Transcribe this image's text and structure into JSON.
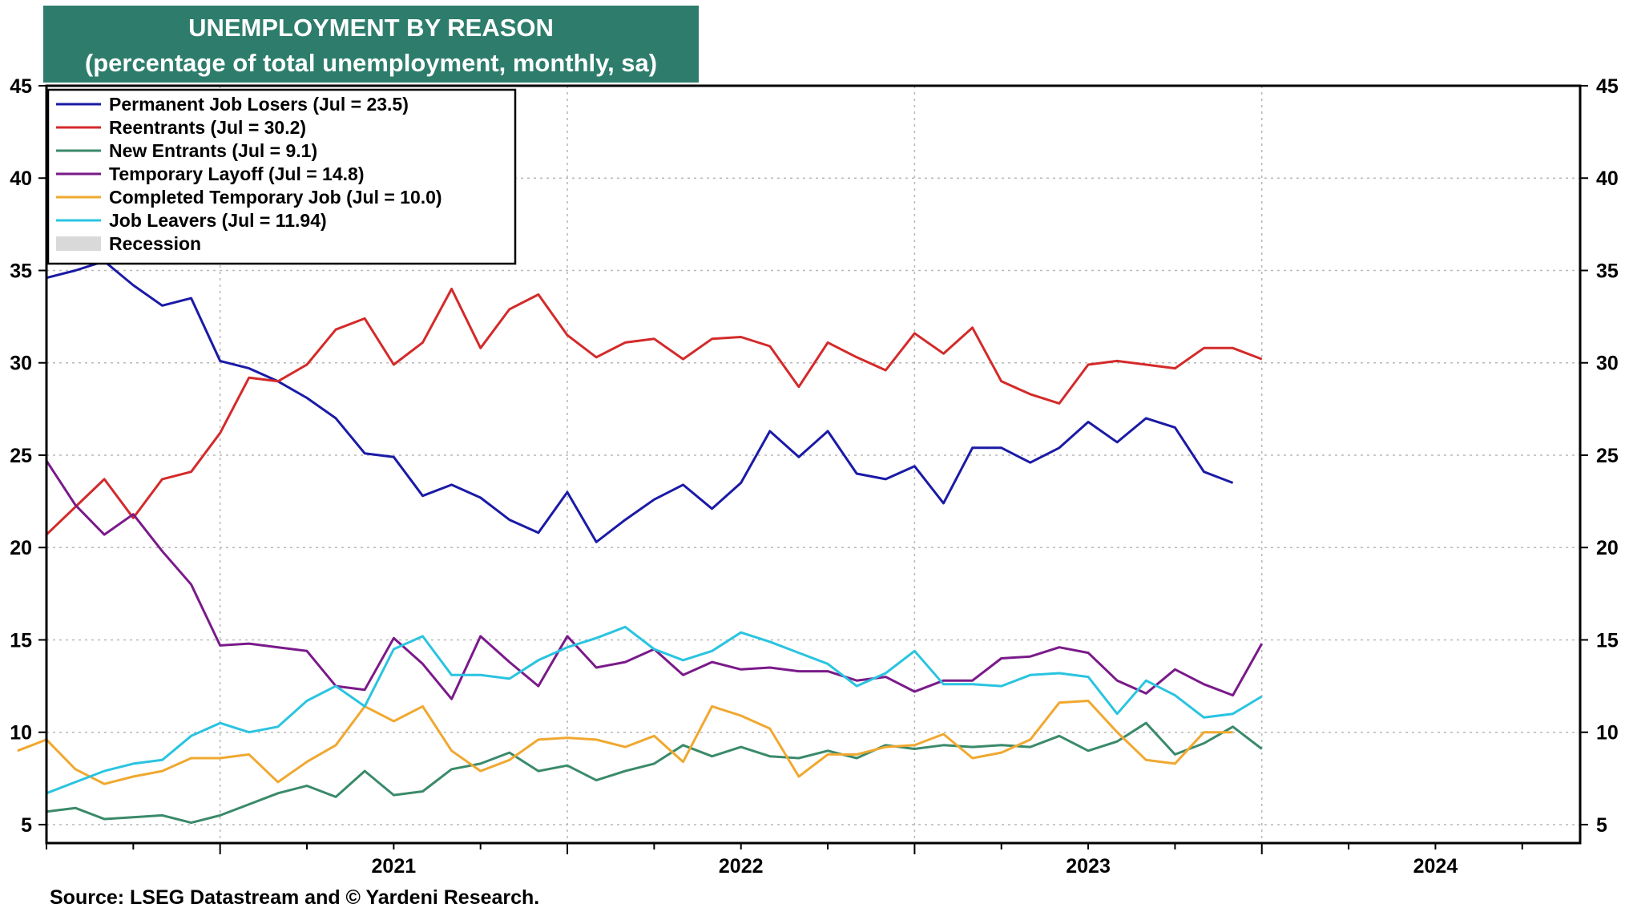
{
  "title": {
    "line1": "UNEMPLOYMENT BY REASON",
    "line2": "(percentage of total unemployment, monthly, sa)"
  },
  "source": "Source: LSEG Datastream and © Yardeni Research.",
  "chart_data": {
    "type": "line",
    "ylim": [
      4,
      45
    ],
    "y_ticks": [
      5,
      10,
      15,
      20,
      25,
      30,
      35,
      40,
      45
    ],
    "x_start": "2020-07",
    "x_end": "2024-12",
    "x_year_labels": [
      "2021",
      "2022",
      "2023",
      "2024"
    ],
    "grid": true,
    "legend_position": "top-left",
    "recession_label": "Recession",
    "series": [
      {
        "name": "Permanent Job Losers (Jul = 23.5)",
        "color": "#1a1aa6",
        "start": "2020-07",
        "values": [
          34.6,
          35.0,
          35.5,
          34.2,
          33.1,
          33.5,
          30.1,
          29.7,
          29.0,
          28.1,
          27.0,
          25.1,
          24.9,
          22.8,
          23.4,
          22.7,
          21.5,
          20.8,
          23.0,
          20.3,
          21.5,
          22.6,
          23.4,
          22.1,
          23.5,
          26.3,
          24.9,
          26.3,
          24.0,
          23.7,
          24.4,
          22.4,
          25.4,
          25.4,
          24.6,
          25.4,
          26.8,
          25.7,
          27.0,
          26.5,
          24.1,
          23.5
        ]
      },
      {
        "name": "Reentrants (Jul = 30.2)",
        "color": "#d42a2a",
        "start": "2020-07",
        "values": [
          20.7,
          22.2,
          23.7,
          21.6,
          23.7,
          24.1,
          26.2,
          29.2,
          29.0,
          29.9,
          31.8,
          32.4,
          29.9,
          31.1,
          34.0,
          30.8,
          32.9,
          33.7,
          31.5,
          30.3,
          31.1,
          31.3,
          30.2,
          31.3,
          31.4,
          30.9,
          28.7,
          31.1,
          30.3,
          29.6,
          31.6,
          30.5,
          31.9,
          29.0,
          28.3,
          27.8,
          29.9,
          30.1,
          29.9,
          29.7,
          30.8,
          30.8,
          30.2
        ]
      },
      {
        "name": "New Entrants (Jul = 9.1)",
        "color": "#3a8a6a",
        "start": "2020-07",
        "values": [
          5.7,
          5.9,
          5.3,
          5.4,
          5.5,
          5.1,
          5.5,
          6.1,
          6.7,
          7.1,
          6.5,
          7.9,
          6.6,
          6.8,
          8.0,
          8.3,
          8.9,
          7.9,
          8.2,
          7.4,
          7.9,
          8.3,
          9.3,
          8.7,
          9.2,
          8.7,
          8.6,
          9.0,
          8.6,
          9.3,
          9.1,
          9.3,
          9.2,
          9.3,
          9.2,
          9.8,
          9.0,
          9.5,
          10.5,
          8.8,
          9.4,
          10.3,
          9.1
        ]
      },
      {
        "name": "Temporary Layoff (Jul = 14.8)",
        "color": "#7a1a8a",
        "start": "2020-07",
        "values": [
          24.7,
          22.3,
          20.7,
          21.8,
          19.8,
          18.0,
          14.7,
          14.8,
          14.6,
          14.4,
          12.5,
          12.3,
          15.1,
          13.7,
          11.8,
          15.2,
          13.8,
          12.5,
          15.2,
          13.5,
          13.8,
          14.5,
          13.1,
          13.8,
          13.4,
          13.5,
          13.3,
          13.3,
          12.8,
          13.0,
          12.2,
          12.8,
          12.8,
          14.0,
          14.1,
          14.6,
          14.3,
          12.8,
          12.1,
          13.4,
          12.6,
          12.0,
          14.8
        ]
      },
      {
        "name": "Completed Temporary Job (Jul = 10.0)",
        "color": "#f0a830",
        "start": "2020-06",
        "values": [
          9.0,
          9.6,
          8.0,
          7.2,
          7.6,
          7.9,
          8.6,
          8.6,
          8.8,
          7.3,
          8.4,
          9.3,
          11.4,
          10.6,
          11.4,
          9.0,
          7.9,
          8.5,
          9.6,
          9.7,
          9.6,
          9.2,
          9.8,
          8.4,
          11.4,
          10.9,
          10.2,
          7.6,
          8.8,
          8.8,
          9.2,
          9.3,
          9.9,
          8.6,
          8.9,
          9.6,
          11.6,
          11.7,
          10.0,
          8.5,
          8.3,
          10.0,
          10.0
        ]
      },
      {
        "name": "Job Leavers (Jul = 11.94)",
        "color": "#2ac4e0",
        "start": "2020-07",
        "values": [
          6.7,
          7.3,
          7.9,
          8.3,
          8.5,
          9.8,
          10.5,
          10.0,
          10.3,
          11.7,
          12.5,
          11.4,
          14.5,
          15.2,
          13.1,
          13.1,
          12.9,
          13.9,
          14.6,
          15.1,
          15.7,
          14.5,
          13.9,
          14.4,
          15.4,
          14.9,
          14.3,
          13.7,
          12.5,
          13.2,
          14.4,
          12.6,
          12.6,
          12.5,
          13.1,
          13.2,
          13.0,
          11.0,
          12.8,
          12.0,
          10.8,
          11.0,
          11.94
        ]
      }
    ]
  }
}
